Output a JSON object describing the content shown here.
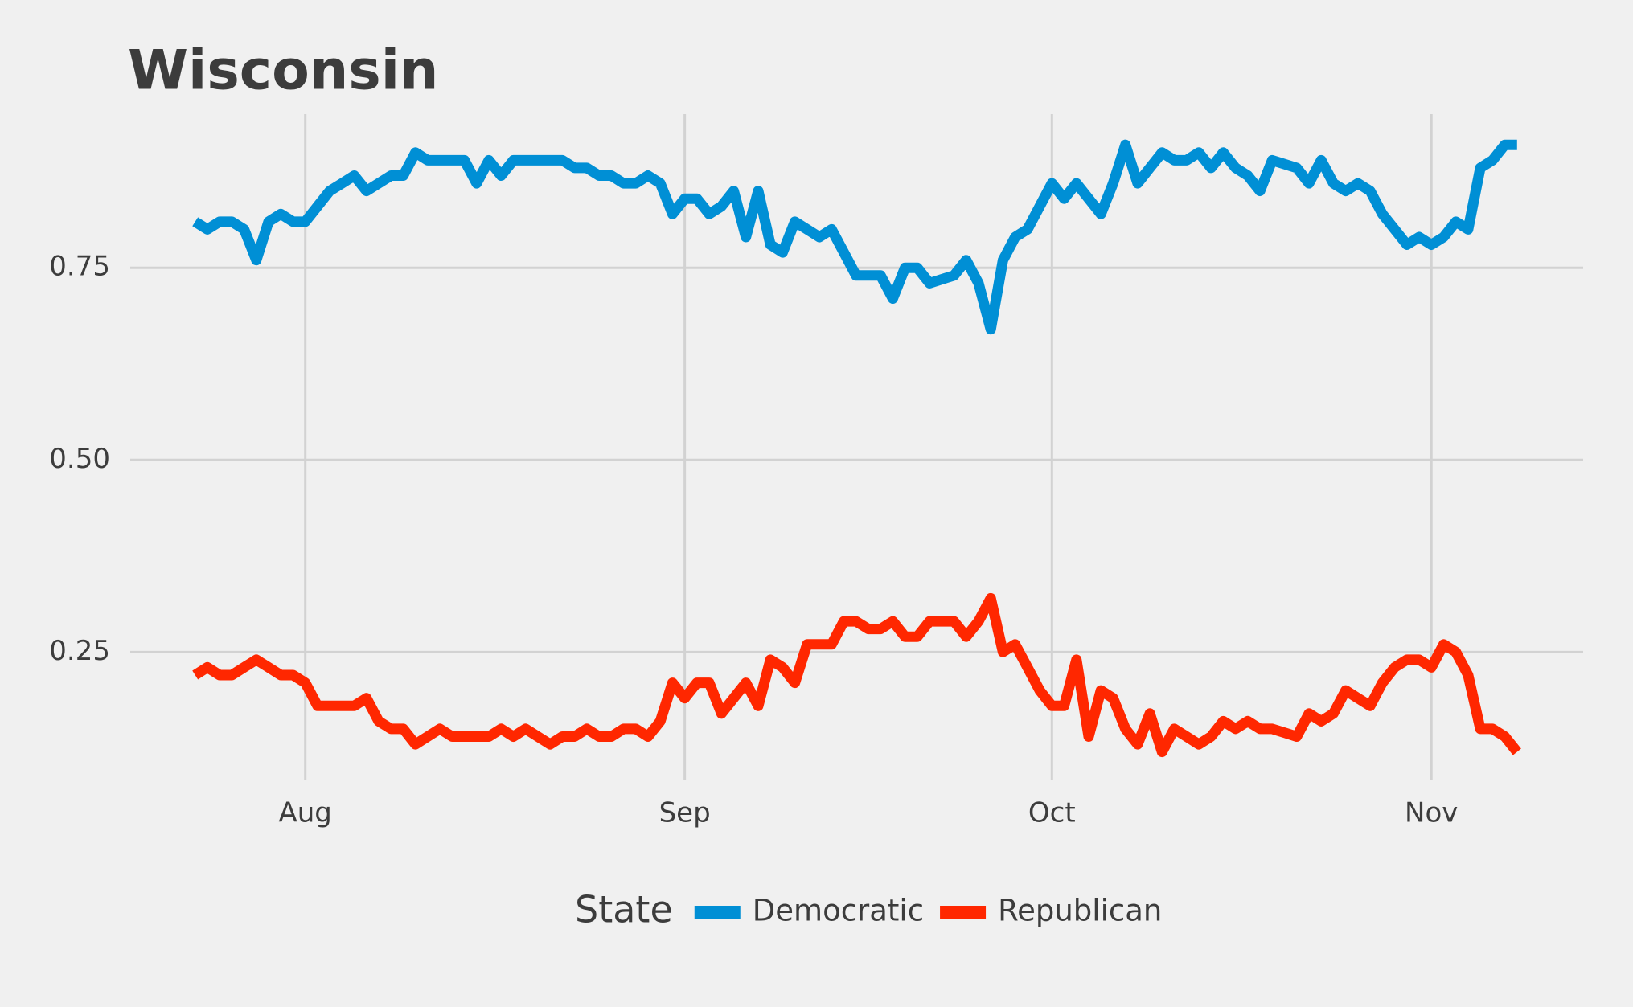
{
  "chart_data": {
    "type": "line",
    "title": "Wisconsin",
    "legend_title": "State",
    "series": [
      {
        "name": "Democratic",
        "color": "#008fd5",
        "values": [
          0.81,
          0.8,
          0.81,
          0.81,
          0.8,
          0.76,
          0.81,
          0.82,
          0.81,
          0.81,
          0.83,
          0.85,
          0.86,
          0.87,
          0.85,
          0.86,
          0.87,
          0.87,
          0.9,
          0.89,
          0.89,
          0.89,
          0.89,
          0.86,
          0.89,
          0.87,
          0.89,
          0.89,
          0.89,
          0.89,
          0.89,
          0.88,
          0.88,
          0.87,
          0.87,
          0.86,
          0.86,
          0.87,
          0.86,
          0.82,
          0.84,
          0.84,
          0.82,
          0.83,
          0.85,
          0.79,
          0.85,
          0.78,
          0.77,
          0.81,
          0.8,
          0.79,
          0.8,
          0.77,
          0.74,
          0.74,
          0.74,
          0.71,
          0.75,
          0.75,
          0.73,
          0.735,
          0.74,
          0.76,
          0.73,
          0.67,
          0.76,
          0.79,
          0.8,
          0.83,
          0.86,
          0.84,
          0.86,
          0.84,
          0.82,
          0.86,
          0.91,
          0.86,
          0.88,
          0.9,
          0.89,
          0.89,
          0.9,
          0.88,
          0.9,
          0.88,
          0.87,
          0.85,
          0.89,
          0.885,
          0.88,
          0.86,
          0.89,
          0.86,
          0.85,
          0.86,
          0.85,
          0.82,
          0.8,
          0.78,
          0.79,
          0.78,
          0.79,
          0.81,
          0.8,
          0.88,
          0.89,
          0.91,
          0.91
        ]
      },
      {
        "name": "Republican",
        "color": "#ff2700",
        "values": [
          0.22,
          0.23,
          0.22,
          0.22,
          0.23,
          0.24,
          0.23,
          0.22,
          0.22,
          0.21,
          0.18,
          0.18,
          0.18,
          0.18,
          0.19,
          0.16,
          0.15,
          0.15,
          0.13,
          0.14,
          0.15,
          0.14,
          0.14,
          0.14,
          0.14,
          0.15,
          0.14,
          0.15,
          0.14,
          0.13,
          0.14,
          0.14,
          0.15,
          0.14,
          0.14,
          0.15,
          0.15,
          0.14,
          0.16,
          0.21,
          0.19,
          0.21,
          0.21,
          0.17,
          0.19,
          0.21,
          0.18,
          0.24,
          0.23,
          0.21,
          0.26,
          0.26,
          0.26,
          0.29,
          0.29,
          0.28,
          0.28,
          0.29,
          0.27,
          0.27,
          0.29,
          0.29,
          0.29,
          0.27,
          0.29,
          0.32,
          0.25,
          0.26,
          0.23,
          0.2,
          0.18,
          0.18,
          0.24,
          0.14,
          0.2,
          0.19,
          0.15,
          0.13,
          0.17,
          0.12,
          0.15,
          0.14,
          0.13,
          0.14,
          0.16,
          0.15,
          0.16,
          0.15,
          0.15,
          0.145,
          0.14,
          0.17,
          0.16,
          0.17,
          0.2,
          0.19,
          0.18,
          0.21,
          0.23,
          0.24,
          0.24,
          0.23,
          0.26,
          0.25,
          0.22,
          0.15,
          0.15,
          0.14,
          0.12
        ]
      }
    ],
    "xlim": [
      -5.3,
      113.4
    ],
    "xticks": [
      {
        "value": 9,
        "label": "Aug"
      },
      {
        "value": 40,
        "label": "Sep"
      },
      {
        "value": 70,
        "label": "Oct"
      },
      {
        "value": 101,
        "label": "Nov"
      }
    ],
    "ylim": [
      0.083,
      0.95
    ],
    "yticks": [
      {
        "value": 0.25,
        "label": "0.25"
      },
      {
        "value": 0.5,
        "label": "0.50"
      },
      {
        "value": 0.75,
        "label": "0.75"
      }
    ],
    "grid": true,
    "legend_position": "bottom"
  }
}
